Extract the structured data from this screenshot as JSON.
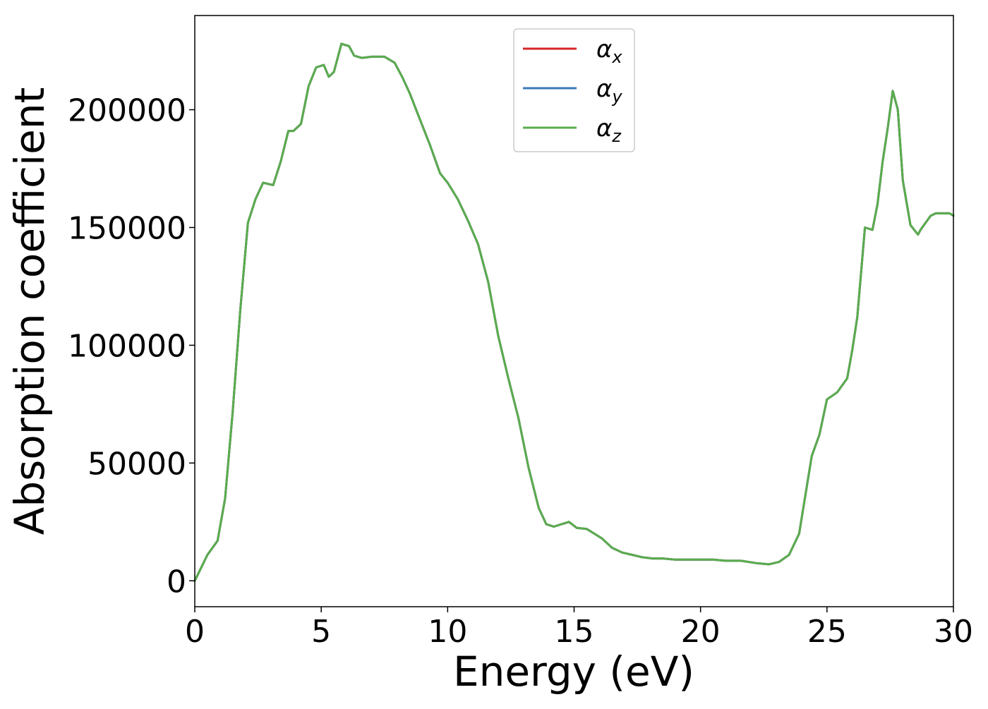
{
  "chart_data": {
    "type": "line",
    "title": "",
    "xlabel": "Energy (eV)",
    "ylabel": "Absorption coefficient",
    "xlim": [
      0,
      30
    ],
    "ylim": [
      -11000,
      240000
    ],
    "xticks": [
      0,
      5,
      10,
      15,
      20,
      25,
      30
    ],
    "yticks": [
      0,
      50000,
      100000,
      150000,
      200000
    ],
    "grid": false,
    "legend_position": "top-center",
    "legend": [
      {
        "symbol": "α",
        "subscript": "x",
        "color": "#d62728"
      },
      {
        "symbol": "α",
        "subscript": "y",
        "color": "#3b7ab5"
      },
      {
        "symbol": "α",
        "subscript": "z",
        "color": "#5aac4e"
      }
    ],
    "x": [
      0,
      0.5,
      0.9,
      1.2,
      1.5,
      1.8,
      2.1,
      2.4,
      2.7,
      2.9,
      3.1,
      3.4,
      3.7,
      3.9,
      4.2,
      4.5,
      4.8,
      5.1,
      5.3,
      5.5,
      5.8,
      6.1,
      6.3,
      6.6,
      7.0,
      7.5,
      7.9,
      8.2,
      8.5,
      8.9,
      9.3,
      9.7,
      10.0,
      10.4,
      10.8,
      11.2,
      11.6,
      12.0,
      12.4,
      12.8,
      13.2,
      13.6,
      13.9,
      14.2,
      14.5,
      14.8,
      15.1,
      15.5,
      15.8,
      16.1,
      16.5,
      16.9,
      17.3,
      17.7,
      18.1,
      18.5,
      19.0,
      19.5,
      20.0,
      20.5,
      21.0,
      21.6,
      22.2,
      22.7,
      23.1,
      23.5,
      23.9,
      24.2,
      24.4,
      24.7,
      25.0,
      25.4,
      25.8,
      26.0,
      26.2,
      26.5,
      26.8,
      27.0,
      27.2,
      27.4,
      27.6,
      27.8,
      28.0,
      28.3,
      28.6,
      28.7,
      28.9,
      29.1,
      29.3,
      29.5,
      29.7,
      29.85,
      30.0
    ],
    "series": [
      {
        "values": [
          0,
          11000,
          17000,
          35000,
          72000,
          115000,
          152000,
          162000,
          169000,
          168500,
          168000,
          178000,
          191000,
          191000,
          194000,
          210000,
          218000,
          219000,
          214000,
          216000,
          228000,
          227000,
          223000,
          222000,
          222500,
          222500,
          220000,
          214000,
          207000,
          196000,
          185000,
          173000,
          169000,
          162000,
          153000,
          143000,
          127000,
          104000,
          86000,
          69000,
          48000,
          31000,
          24000,
          23000,
          24000,
          25000,
          22500,
          22000,
          20000,
          18000,
          14000,
          12000,
          11000,
          10000,
          9500,
          9500,
          9000,
          9000,
          9000,
          9000,
          8500,
          8500,
          7500,
          7000,
          8000,
          11000,
          20000,
          40000,
          53000,
          62000,
          77000,
          80000,
          86000,
          98000,
          112000,
          150000,
          149000,
          160000,
          178000,
          192000,
          208000,
          200000,
          170000,
          151000,
          147000,
          149000,
          152000,
          155000,
          156000,
          156000,
          156000,
          156000,
          155000
        ]
      },
      {
        "values": [
          0,
          11000,
          17000,
          35000,
          72000,
          115000,
          152000,
          162000,
          169000,
          168500,
          168000,
          178000,
          191000,
          191000,
          194000,
          210000,
          218000,
          219000,
          214000,
          216000,
          228000,
          227000,
          223000,
          222000,
          222500,
          222500,
          220000,
          214000,
          207000,
          196000,
          185000,
          173000,
          169000,
          162000,
          153000,
          143000,
          127000,
          104000,
          86000,
          69000,
          48000,
          31000,
          24000,
          23000,
          24000,
          25000,
          22500,
          22000,
          20000,
          18000,
          14000,
          12000,
          11000,
          10000,
          9500,
          9500,
          9000,
          9000,
          9000,
          9000,
          8500,
          8500,
          7500,
          7000,
          8000,
          11000,
          20000,
          40000,
          53000,
          62000,
          77000,
          80000,
          86000,
          98000,
          112000,
          150000,
          149000,
          160000,
          178000,
          192000,
          208000,
          200000,
          170000,
          151000,
          147000,
          149000,
          152000,
          155000,
          156000,
          156000,
          156000,
          156000,
          155000
        ]
      },
      {
        "values": [
          0,
          11000,
          17000,
          35000,
          72000,
          115000,
          152000,
          162000,
          169000,
          168500,
          168000,
          178000,
          191000,
          191000,
          194000,
          210000,
          218000,
          219000,
          214000,
          216000,
          228000,
          227000,
          223000,
          222000,
          222500,
          222500,
          220000,
          214000,
          207000,
          196000,
          185000,
          173000,
          169000,
          162000,
          153000,
          143000,
          127000,
          104000,
          86000,
          69000,
          48000,
          31000,
          24000,
          23000,
          24000,
          25000,
          22500,
          22000,
          20000,
          18000,
          14000,
          12000,
          11000,
          10000,
          9500,
          9500,
          9000,
          9000,
          9000,
          9000,
          8500,
          8500,
          7500,
          7000,
          8000,
          11000,
          20000,
          40000,
          53000,
          62000,
          77000,
          80000,
          86000,
          98000,
          112000,
          150000,
          149000,
          160000,
          178000,
          192000,
          208000,
          200000,
          170000,
          151000,
          147000,
          149000,
          152000,
          155000,
          156000,
          156000,
          156000,
          156000,
          155000
        ]
      }
    ]
  }
}
